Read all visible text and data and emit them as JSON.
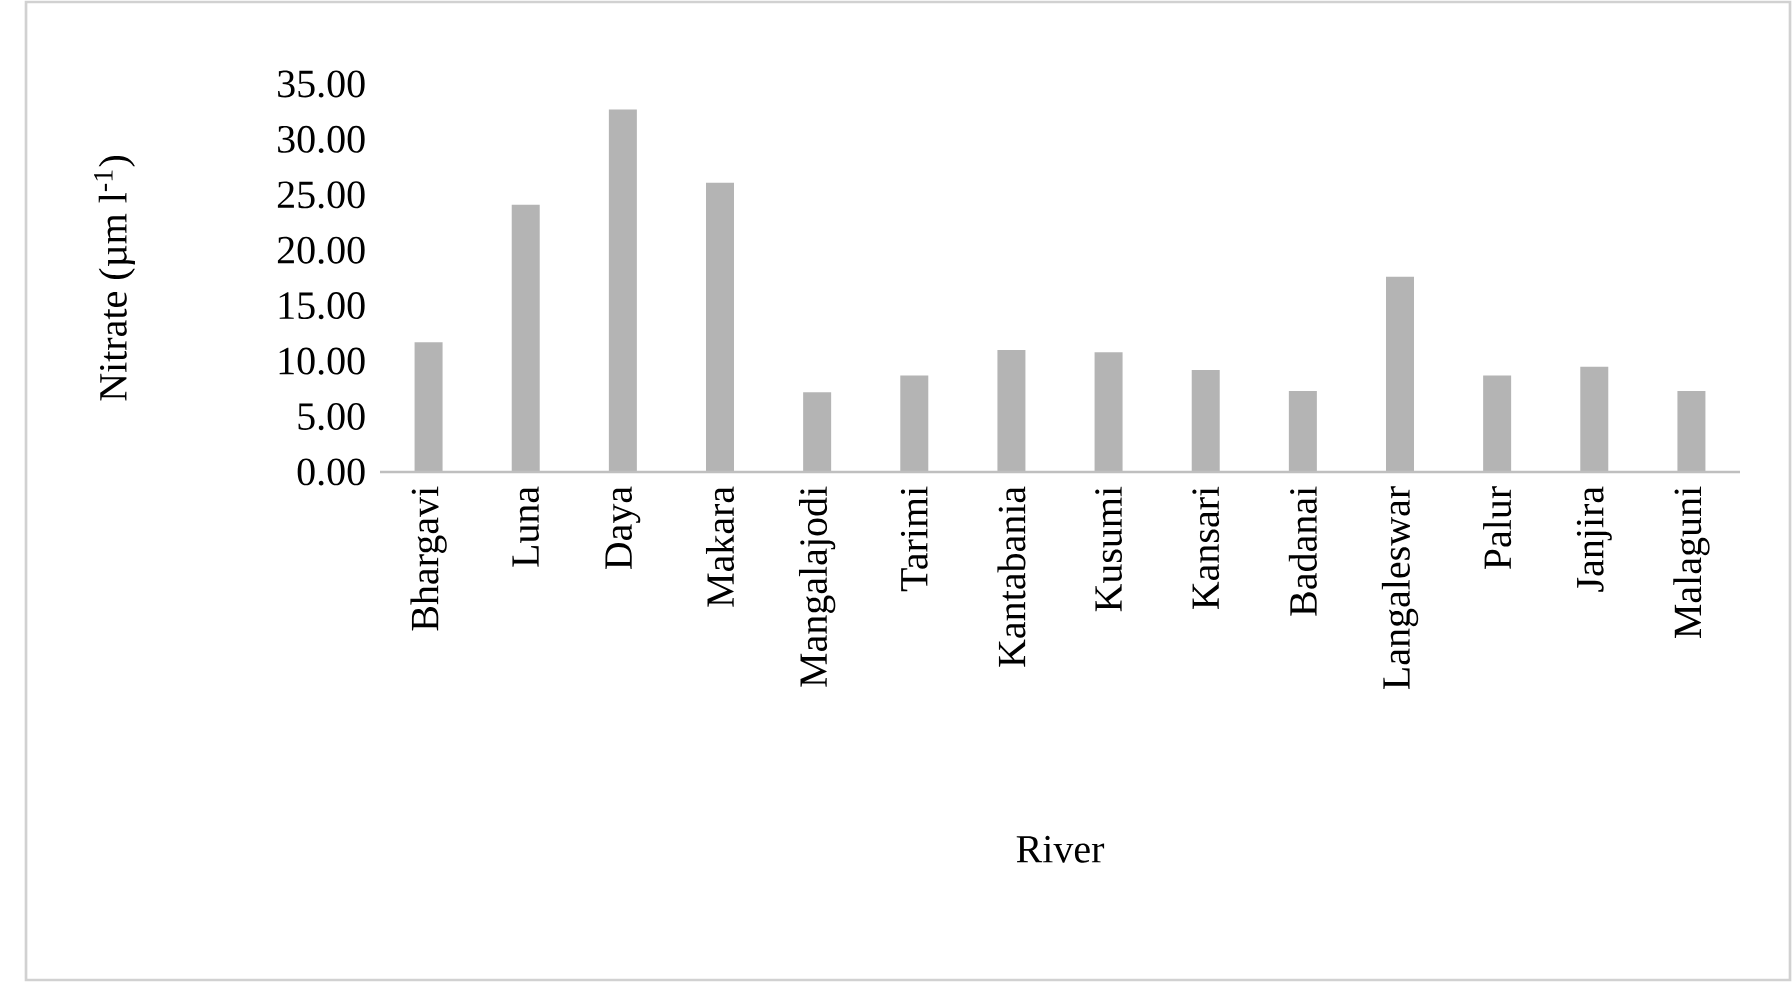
{
  "chart_data": {
    "type": "bar",
    "xlabel": "River",
    "ylabel": "Nitrate (µm l$^{-1}$)",
    "categories": [
      "Bhargavi",
      "Luna",
      "Daya",
      "Makara",
      "Mangalajodi",
      "Tarimi",
      "Kantabania",
      "Kusumi",
      "Kansari",
      "Badanai",
      "Langaleswar",
      "Palur",
      "Janjira",
      "Malaguni"
    ],
    "values": [
      11.7,
      24.1,
      32.7,
      26.1,
      7.2,
      8.7,
      11.0,
      10.8,
      9.2,
      7.3,
      17.6,
      8.7,
      9.5,
      7.3
    ],
    "color": "#b4b4b4",
    "ylim": [
      0,
      35
    ],
    "yticks": [
      {
        "value": 0,
        "label": "0.00"
      },
      {
        "value": 5,
        "label": "5.00"
      },
      {
        "value": 10,
        "label": "10.00"
      },
      {
        "value": 15,
        "label": "15.00"
      },
      {
        "value": 20,
        "label": "20.00"
      },
      {
        "value": 25,
        "label": "25.00"
      },
      {
        "value": 30,
        "label": "30.00"
      },
      {
        "value": 35,
        "label": "35.00"
      }
    ],
    "grid": false
  }
}
